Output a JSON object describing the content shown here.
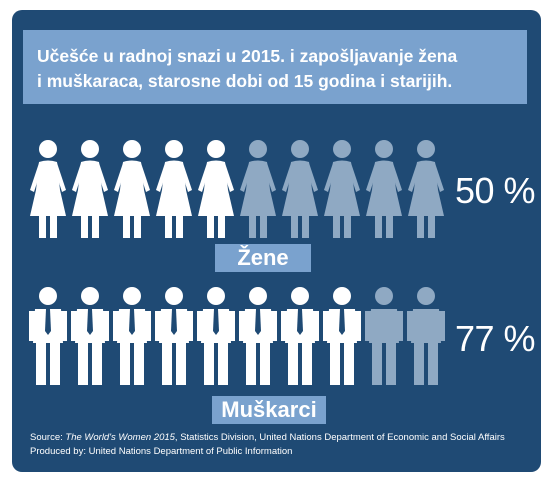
{
  "colors": {
    "panel": "#1f4a74",
    "accent_box": "#7aa2ce",
    "filled": "#ffffff",
    "empty": "#8fa9c3"
  },
  "title": {
    "line1": "Učešće u radnoj snazi u 2015. i zapošljavanje žena",
    "line2": "i muškaraca, starosne dobi od 15 godina i starijih."
  },
  "chart_data": [
    {
      "type": "bar",
      "series": [
        {
          "name": "Žene",
          "values": [
            50
          ]
        }
      ],
      "icons_total": 10,
      "icons_filled": 5,
      "icon": "woman-icon",
      "value_label": "50 %",
      "category_label": "Žene"
    },
    {
      "type": "bar",
      "series": [
        {
          "name": "Muškarci",
          "values": [
            77
          ]
        }
      ],
      "icons_total": 10,
      "icons_filled": 8,
      "icon": "man-icon",
      "value_label": "77 %",
      "category_label": "Muškarci"
    }
  ],
  "footer": {
    "source_prefix": "Source: ",
    "source_title": "The World's Women 2015",
    "source_rest": ", Statistics Division, United Nations Department of Economic and Social Affairs",
    "produced_by": "Produced by: United Nations Department of Public Information"
  }
}
